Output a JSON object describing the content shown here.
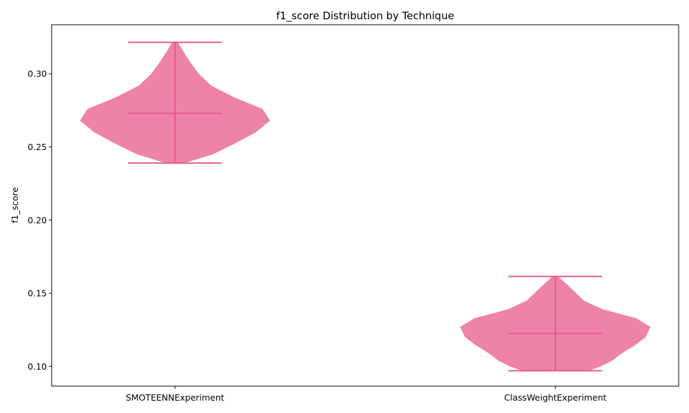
{
  "chart_data": {
    "type": "violin",
    "title": "f1_score Distribution by Technique",
    "xlabel": "",
    "ylabel": "f1_score",
    "ylim": [
      0.0865,
      0.3335
    ],
    "yticks": [
      0.1,
      0.15,
      0.2,
      0.25,
      0.3
    ],
    "ytick_labels": [
      "0.10",
      "0.15",
      "0.20",
      "0.25",
      "0.30"
    ],
    "color": "#e8598e",
    "grid": false,
    "legend": "none",
    "violins": [
      {
        "name": "SMOTEENNExperiment",
        "min": 0.239,
        "max": 0.3215,
        "mean": 0.273,
        "profile": [
          [
            0.239,
            0.1
          ],
          [
            0.245,
            0.4
          ],
          [
            0.252,
            0.62
          ],
          [
            0.26,
            0.85
          ],
          [
            0.268,
            1.0
          ],
          [
            0.276,
            0.92
          ],
          [
            0.284,
            0.62
          ],
          [
            0.292,
            0.38
          ],
          [
            0.3,
            0.25
          ],
          [
            0.308,
            0.16
          ],
          [
            0.315,
            0.09
          ],
          [
            0.3215,
            0.03
          ]
        ]
      },
      {
        "name": "ClassWeightExperiment",
        "min": 0.097,
        "max": 0.1615,
        "mean": 0.1225,
        "profile": [
          [
            0.097,
            0.35
          ],
          [
            0.1,
            0.48
          ],
          [
            0.104,
            0.6
          ],
          [
            0.109,
            0.7
          ],
          [
            0.115,
            0.85
          ],
          [
            0.12,
            0.95
          ],
          [
            0.127,
            1.0
          ],
          [
            0.133,
            0.85
          ],
          [
            0.139,
            0.5
          ],
          [
            0.145,
            0.3
          ],
          [
            0.15,
            0.22
          ],
          [
            0.155,
            0.14
          ],
          [
            0.1615,
            0.03
          ]
        ]
      }
    ]
  }
}
